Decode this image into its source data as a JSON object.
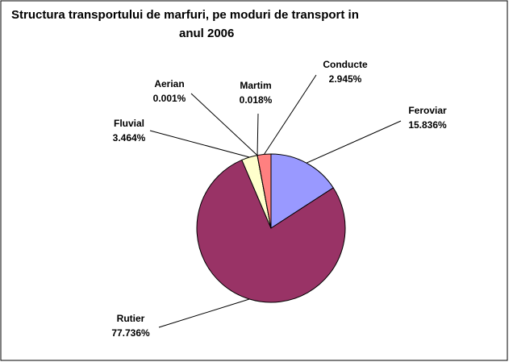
{
  "chart_data": {
    "type": "pie",
    "title_lines": [
      "Structura transportului de marfuri, pe moduri de transport in",
      "anul 2006"
    ],
    "slices": [
      {
        "name": "Feroviar",
        "value": 15.836,
        "value_label": "15.836%",
        "color": "#9999ff"
      },
      {
        "name": "Rutier",
        "value": 77.736,
        "value_label": "77.736%",
        "color": "#993366"
      },
      {
        "name": "Fluvial",
        "value": 3.464,
        "value_label": "3.464%",
        "color": "#ffffcc"
      },
      {
        "name": "Aerian",
        "value": 0.001,
        "value_label": "0.001%",
        "color": "#ccffff"
      },
      {
        "name": "Martim",
        "value": 0.018,
        "value_label": "0.018%",
        "color": "#660066"
      },
      {
        "name": "Conducte",
        "value": 2.945,
        "value_label": "2.945%",
        "color": "#ff8080"
      }
    ],
    "start_angle_deg": 0,
    "direction": "clockwise"
  }
}
